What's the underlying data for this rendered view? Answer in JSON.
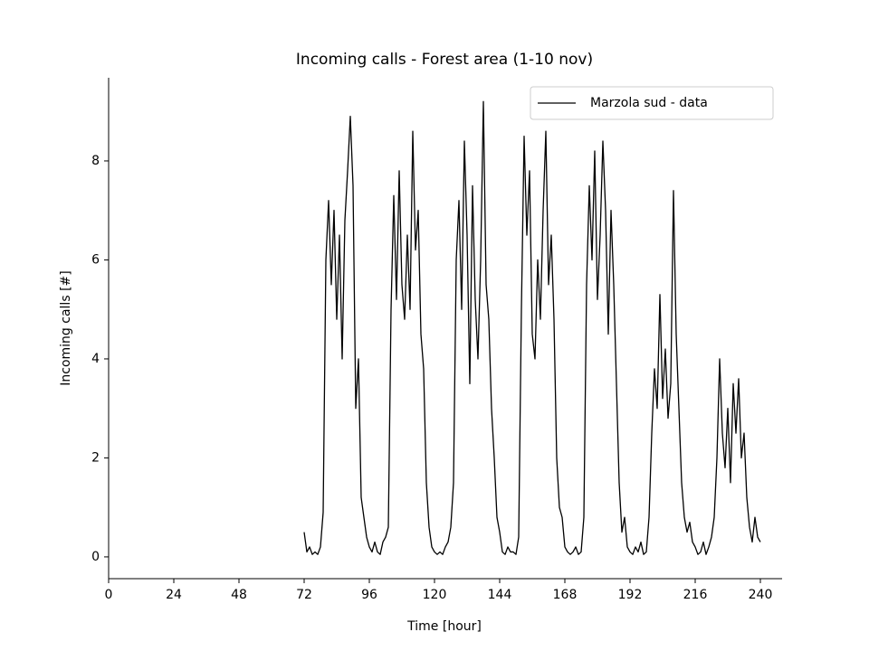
{
  "chart_data": {
    "type": "line",
    "title": "Incoming calls - Forest area (1-10 nov)",
    "x_label": "Time [hour]",
    "y_label": "Incoming calls [#]",
    "x": [
      72,
      73,
      74,
      75,
      76,
      77,
      78,
      79,
      80,
      81,
      82,
      83,
      84,
      85,
      86,
      87,
      88,
      89,
      90,
      91,
      92,
      93,
      94,
      95,
      96,
      97,
      98,
      99,
      100,
      101,
      102,
      103,
      104,
      105,
      106,
      107,
      108,
      109,
      110,
      111,
      112,
      113,
      114,
      115,
      116,
      117,
      118,
      119,
      120,
      121,
      122,
      123,
      124,
      125,
      126,
      127,
      128,
      129,
      130,
      131,
      132,
      133,
      134,
      135,
      136,
      137,
      138,
      139,
      140,
      141,
      142,
      143,
      144,
      145,
      146,
      147,
      148,
      149,
      150,
      151,
      152,
      153,
      154,
      155,
      156,
      157,
      158,
      159,
      160,
      161,
      162,
      163,
      164,
      165,
      166,
      167,
      168,
      169,
      170,
      171,
      172,
      173,
      174,
      175,
      176,
      177,
      178,
      179,
      180,
      181,
      182,
      183,
      184,
      185,
      186,
      187,
      188,
      189,
      190,
      191,
      192,
      193,
      194,
      195,
      196,
      197,
      198,
      199,
      200,
      201,
      202,
      203,
      204,
      205,
      206,
      207,
      208,
      209,
      210,
      211,
      212,
      213,
      214,
      215,
      216,
      217,
      218,
      219,
      220,
      221,
      222,
      223,
      224,
      225,
      226,
      227,
      228,
      229,
      230,
      231,
      232,
      233,
      234,
      235,
      236,
      237,
      238,
      239,
      240
    ],
    "series": [
      {
        "name": "Marzola sud - data",
        "color": "#000000",
        "values": [
          0.5,
          0.1,
          0.2,
          0.05,
          0.1,
          0.05,
          0.2,
          0.9,
          6.0,
          7.2,
          5.5,
          7.0,
          4.8,
          6.5,
          4.0,
          6.8,
          7.8,
          8.9,
          7.5,
          3.0,
          4.0,
          1.2,
          0.8,
          0.4,
          0.2,
          0.1,
          0.3,
          0.1,
          0.05,
          0.3,
          0.4,
          0.6,
          5.0,
          7.3,
          5.2,
          7.8,
          5.5,
          4.8,
          6.5,
          5.0,
          8.6,
          6.2,
          7.0,
          4.5,
          3.8,
          1.5,
          0.6,
          0.2,
          0.1,
          0.05,
          0.1,
          0.05,
          0.2,
          0.3,
          0.6,
          1.5,
          6.0,
          7.2,
          5.0,
          8.4,
          6.5,
          3.5,
          7.5,
          5.2,
          4.0,
          6.0,
          9.2,
          5.5,
          4.8,
          3.0,
          2.0,
          0.8,
          0.5,
          0.1,
          0.05,
          0.2,
          0.1,
          0.1,
          0.05,
          0.4,
          5.0,
          8.5,
          6.5,
          7.8,
          4.5,
          4.0,
          6.0,
          4.8,
          7.0,
          8.6,
          5.5,
          6.5,
          4.8,
          2.0,
          1.0,
          0.8,
          0.2,
          0.1,
          0.05,
          0.1,
          0.2,
          0.05,
          0.1,
          0.8,
          5.5,
          7.5,
          6.0,
          8.2,
          5.2,
          6.5,
          8.4,
          7.0,
          4.5,
          7.0,
          5.5,
          3.5,
          1.5,
          0.5,
          0.8,
          0.2,
          0.1,
          0.05,
          0.2,
          0.1,
          0.3,
          0.05,
          0.1,
          0.8,
          2.5,
          3.8,
          3.0,
          5.3,
          3.2,
          4.2,
          2.8,
          3.5,
          7.4,
          4.5,
          3.0,
          1.5,
          0.8,
          0.5,
          0.7,
          0.3,
          0.2,
          0.05,
          0.1,
          0.3,
          0.05,
          0.2,
          0.4,
          0.8,
          2.0,
          4.0,
          2.5,
          1.8,
          3.0,
          1.5,
          3.5,
          2.5,
          3.6,
          2.0,
          2.5,
          1.2,
          0.6,
          0.3,
          0.8,
          0.4,
          0.3
        ]
      }
    ],
    "xlim": [
      0,
      248
    ],
    "ylim": [
      -0.44,
      9.68
    ],
    "xticks": [
      0,
      24,
      48,
      72,
      96,
      120,
      144,
      168,
      192,
      216,
      240
    ],
    "yticks": [
      0,
      2,
      4,
      6,
      8
    ],
    "legend": "upper right",
    "grid": false
  }
}
